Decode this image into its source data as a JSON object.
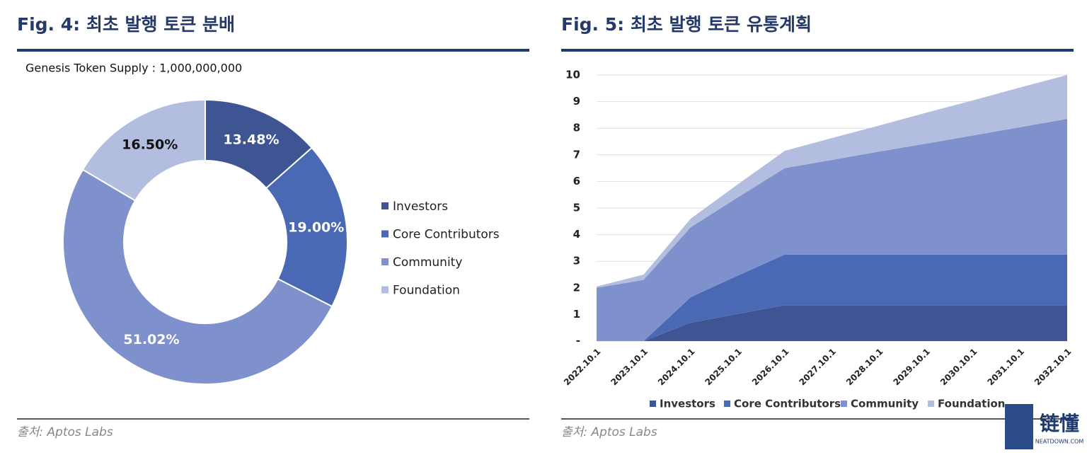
{
  "chart_data": [
    {
      "type": "pie",
      "title": "Fig. 4: 최초 발행 토큰 분배",
      "subtitle": "Genesis Token Supply : 1,000,000,000",
      "source": "출처: Aptos Labs",
      "categories": [
        "Investors",
        "Core Contributors",
        "Community",
        "Foundation"
      ],
      "values": [
        13.48,
        19.0,
        51.02,
        16.5
      ],
      "value_labels": [
        "13.48%",
        "19.00%",
        "51.02%",
        "16.50%"
      ],
      "colors": [
        "#3f5593",
        "#4a69b5",
        "#7f91cc",
        "#b3bddf"
      ],
      "legend": "right"
    },
    {
      "type": "stacked_area",
      "title": "Fig. 5: 최초 발행 토큰 유통계획",
      "source": "출처: Aptos Labs",
      "categories": [
        "2022.10.1",
        "2023.10.1",
        "2024.10.1",
        "2025.10.1",
        "2026.10.1",
        "2027.10.1",
        "2028.10.1",
        "2029.10.1",
        "2030.10.1",
        "2031.10.1",
        "2032.10.1"
      ],
      "series": [
        {
          "name": "Investors",
          "color": "#3f5593",
          "values": [
            0,
            0,
            0.69,
            1.02,
            1.35,
            1.35,
            1.35,
            1.35,
            1.35,
            1.35,
            1.35
          ]
        },
        {
          "name": "Core Contributors",
          "color": "#4a69b5",
          "values": [
            0,
            0,
            0.96,
            1.44,
            1.9,
            1.9,
            1.9,
            1.9,
            1.9,
            1.9,
            1.9
          ]
        },
        {
          "name": "Community",
          "color": "#7f91cc",
          "values": [
            2.0,
            2.3,
            2.63,
            2.94,
            3.25,
            3.56,
            3.87,
            4.17,
            4.48,
            4.79,
            5.1
          ]
        },
        {
          "name": "Foundation",
          "color": "#b3bddf",
          "values": [
            0.05,
            0.2,
            0.32,
            0.49,
            0.65,
            0.82,
            0.98,
            1.16,
            1.32,
            1.49,
            1.65
          ]
        }
      ],
      "ylim": [
        0,
        10
      ],
      "yticks": [
        {
          "value": 0,
          "label": "-"
        },
        1,
        2,
        3,
        4,
        5,
        6,
        7,
        8,
        9,
        10
      ],
      "grid": true,
      "legend": "bottom"
    }
  ],
  "watermark": {
    "logo": "链懂",
    "site": "NEATDOWN.COM"
  }
}
